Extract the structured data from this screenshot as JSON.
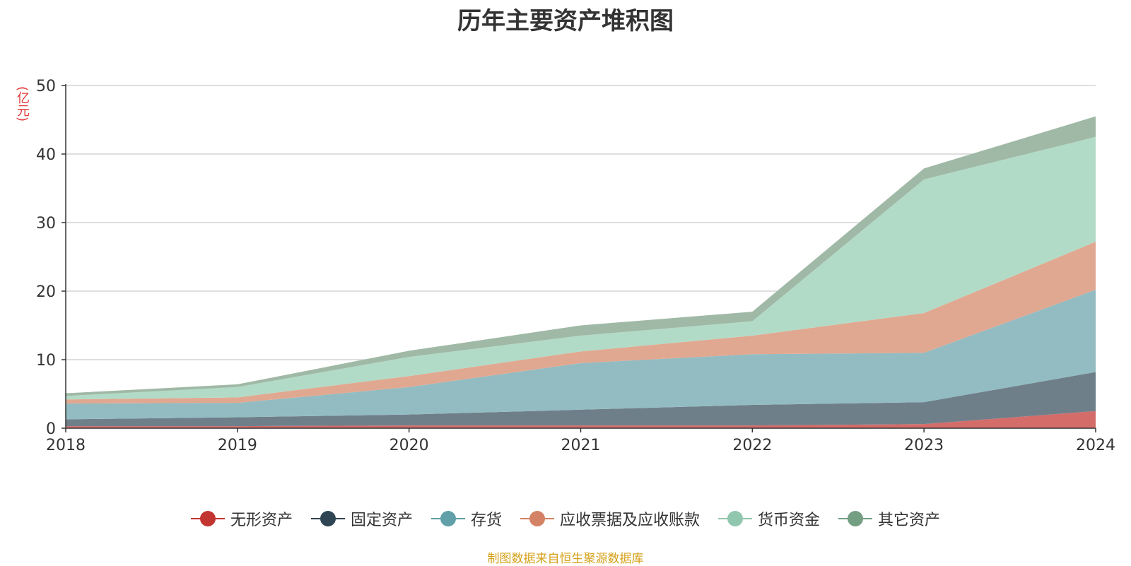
{
  "chart_data": {
    "type": "area",
    "stacked": true,
    "title": "历年主要资产堆积图",
    "ylabel": "(亿元)",
    "x": [
      "2018",
      "2019",
      "2020",
      "2021",
      "2022",
      "2023",
      "2024"
    ],
    "ylim": [
      0,
      50
    ],
    "yticks": [
      0,
      10,
      20,
      30,
      40,
      50
    ],
    "grid": true,
    "legend_position": "bottom",
    "series": [
      {
        "name": "无形资产",
        "color": "#c23531",
        "area_color": "#d46c6a",
        "values": [
          0.3,
          0.3,
          0.4,
          0.4,
          0.4,
          0.6,
          2.5
        ]
      },
      {
        "name": "固定资产",
        "color": "#2f4554",
        "area_color": "#6f7f8a",
        "values": [
          1.0,
          1.3,
          1.6,
          2.3,
          3.0,
          3.2,
          5.7
        ]
      },
      {
        "name": "存货",
        "color": "#61a0a8",
        "area_color": "#92bcc2",
        "values": [
          2.3,
          2.1,
          4.0,
          6.8,
          7.4,
          7.2,
          12.0
        ]
      },
      {
        "name": "应收票据及应收账款",
        "color": "#d48265",
        "area_color": "#e1a891",
        "values": [
          0.6,
          0.8,
          1.6,
          1.7,
          2.7,
          5.8,
          7.0
        ]
      },
      {
        "name": "货币资金",
        "color": "#91c7ae",
        "area_color": "#b2dbc7",
        "values": [
          0.5,
          1.5,
          2.8,
          2.3,
          2.1,
          19.5,
          15.3
        ]
      },
      {
        "name": "其它资产",
        "color": "#749f83",
        "area_color": "#a0b9a6",
        "values": [
          0.4,
          0.4,
          0.9,
          1.5,
          1.4,
          1.6,
          3.0
        ]
      }
    ]
  },
  "source_text": "制图数据来自恒生聚源数据库"
}
